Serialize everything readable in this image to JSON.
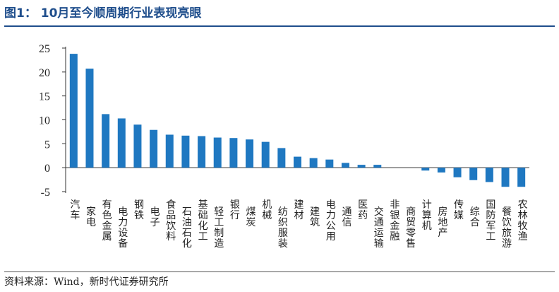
{
  "figure": {
    "title": "图1： 10月至今顺周期行业表现亮眼",
    "source": "资料来源：Wind，新时代证券研究所"
  },
  "colors": {
    "bar": "#1f78c1",
    "accent": "#1f4e8c"
  },
  "chart_data": {
    "type": "bar",
    "title": "",
    "xlabel": "",
    "ylabel": "",
    "ylim": [
      -5,
      25
    ],
    "yticks": [
      25,
      20,
      15,
      10,
      5,
      0,
      -5
    ],
    "grid": false,
    "categories": [
      "汽车",
      "家电",
      "有色金属",
      "电力设备",
      "钢铁",
      "电子",
      "食品饮料",
      "石油石化",
      "基础化工",
      "轻工制造",
      "银行",
      "煤炭",
      "机械",
      "纺织服装",
      "建材",
      "建筑",
      "电力公用",
      "通信",
      "医药",
      "交通运输",
      "非银金融",
      "商贸零售",
      "计算机",
      "房地产",
      "传媒",
      "综合",
      "国防军工",
      "餐饮旅游",
      "农林牧渔"
    ],
    "values": [
      23.8,
      20.7,
      11.2,
      10.3,
      9.0,
      7.9,
      6.9,
      6.7,
      6.6,
      6.3,
      6.2,
      5.9,
      5.4,
      4.1,
      2.3,
      2.0,
      1.7,
      1.0,
      0.6,
      0.6,
      0.0,
      0.0,
      -0.6,
      -1.0,
      -2.0,
      -2.6,
      -3.0,
      -4.0,
      -4.0
    ]
  }
}
